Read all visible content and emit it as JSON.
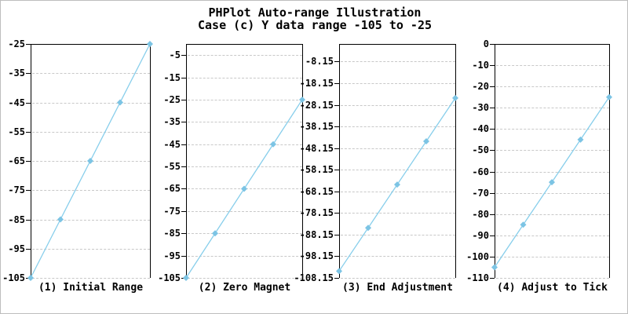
{
  "page": {
    "title_line1": "PHPlot Auto-range Illustration",
    "title_line2": "Case (c) Y data range -105 to -25"
  },
  "colors": {
    "line": "#87CEEB",
    "marker": "#7CC4E4",
    "grid": "#C8C8C8",
    "axis": "#000000",
    "background": "#FFFFFF",
    "frame": "#BDBDBD"
  },
  "chart_data": [
    {
      "type": "line",
      "title": "(1) Initial Range",
      "x": [
        0,
        1,
        2,
        3,
        4
      ],
      "y": [
        -105,
        -85,
        -65,
        -45,
        -25
      ],
      "ylim": [
        -105,
        -25
      ],
      "ytick_values": [
        -25,
        -35,
        -45,
        -55,
        -65,
        -75,
        -85,
        -95,
        -105
      ],
      "ytick_labels": [
        "-25",
        "-35",
        "-45",
        "-55",
        "-65",
        "-75",
        "-85",
        "-95",
        "-105"
      ],
      "grid": true,
      "marker": "diamond",
      "legend": null,
      "xlabel": "",
      "ylabel": ""
    },
    {
      "type": "line",
      "title": "(2) Zero Magnet",
      "x": [
        0,
        1,
        2,
        3,
        4
      ],
      "y": [
        -105,
        -85,
        -65,
        -45,
        -25
      ],
      "ylim": [
        -105,
        0
      ],
      "ytick_values": [
        -5,
        -15,
        -25,
        -35,
        -45,
        -55,
        -65,
        -75,
        -85,
        -95,
        -105
      ],
      "ytick_labels": [
        "-5",
        "-15",
        "-25",
        "-35",
        "-45",
        "-55",
        "-65",
        "-75",
        "-85",
        "-95",
        "-105"
      ],
      "grid": true,
      "marker": "diamond",
      "legend": null,
      "xlabel": "",
      "ylabel": ""
    },
    {
      "type": "line",
      "title": "(3) End Adjustment",
      "x": [
        0,
        1,
        2,
        3,
        4
      ],
      "y": [
        -105,
        -85,
        -65,
        -45,
        -25
      ],
      "ylim": [
        -108.15,
        0
      ],
      "ytick_values": [
        -8.15,
        -18.15,
        -28.15,
        -38.15,
        -48.15,
        -58.15,
        -68.15,
        -78.15,
        -88.15,
        -98.15,
        -108.15
      ],
      "ytick_labels": [
        "-8.15",
        "-18.15",
        "-28.15",
        "-38.15",
        "-48.15",
        "-58.15",
        "-68.15",
        "-78.15",
        "-88.15",
        "-98.15",
        "-108.15"
      ],
      "grid": true,
      "marker": "diamond",
      "legend": null,
      "xlabel": "",
      "ylabel": ""
    },
    {
      "type": "line",
      "title": "(4) Adjust to Tick",
      "x": [
        0,
        1,
        2,
        3,
        4
      ],
      "y": [
        -105,
        -85,
        -65,
        -45,
        -25
      ],
      "ylim": [
        -110,
        0
      ],
      "ytick_values": [
        0,
        -10,
        -20,
        -30,
        -40,
        -50,
        -60,
        -70,
        -80,
        -90,
        -100,
        -110
      ],
      "ytick_labels": [
        "0",
        "-10",
        "-20",
        "-30",
        "-40",
        "-50",
        "-60",
        "-70",
        "-80",
        "-90",
        "-100",
        "-110"
      ],
      "grid": true,
      "marker": "diamond",
      "legend": null,
      "xlabel": "",
      "ylabel": ""
    }
  ]
}
